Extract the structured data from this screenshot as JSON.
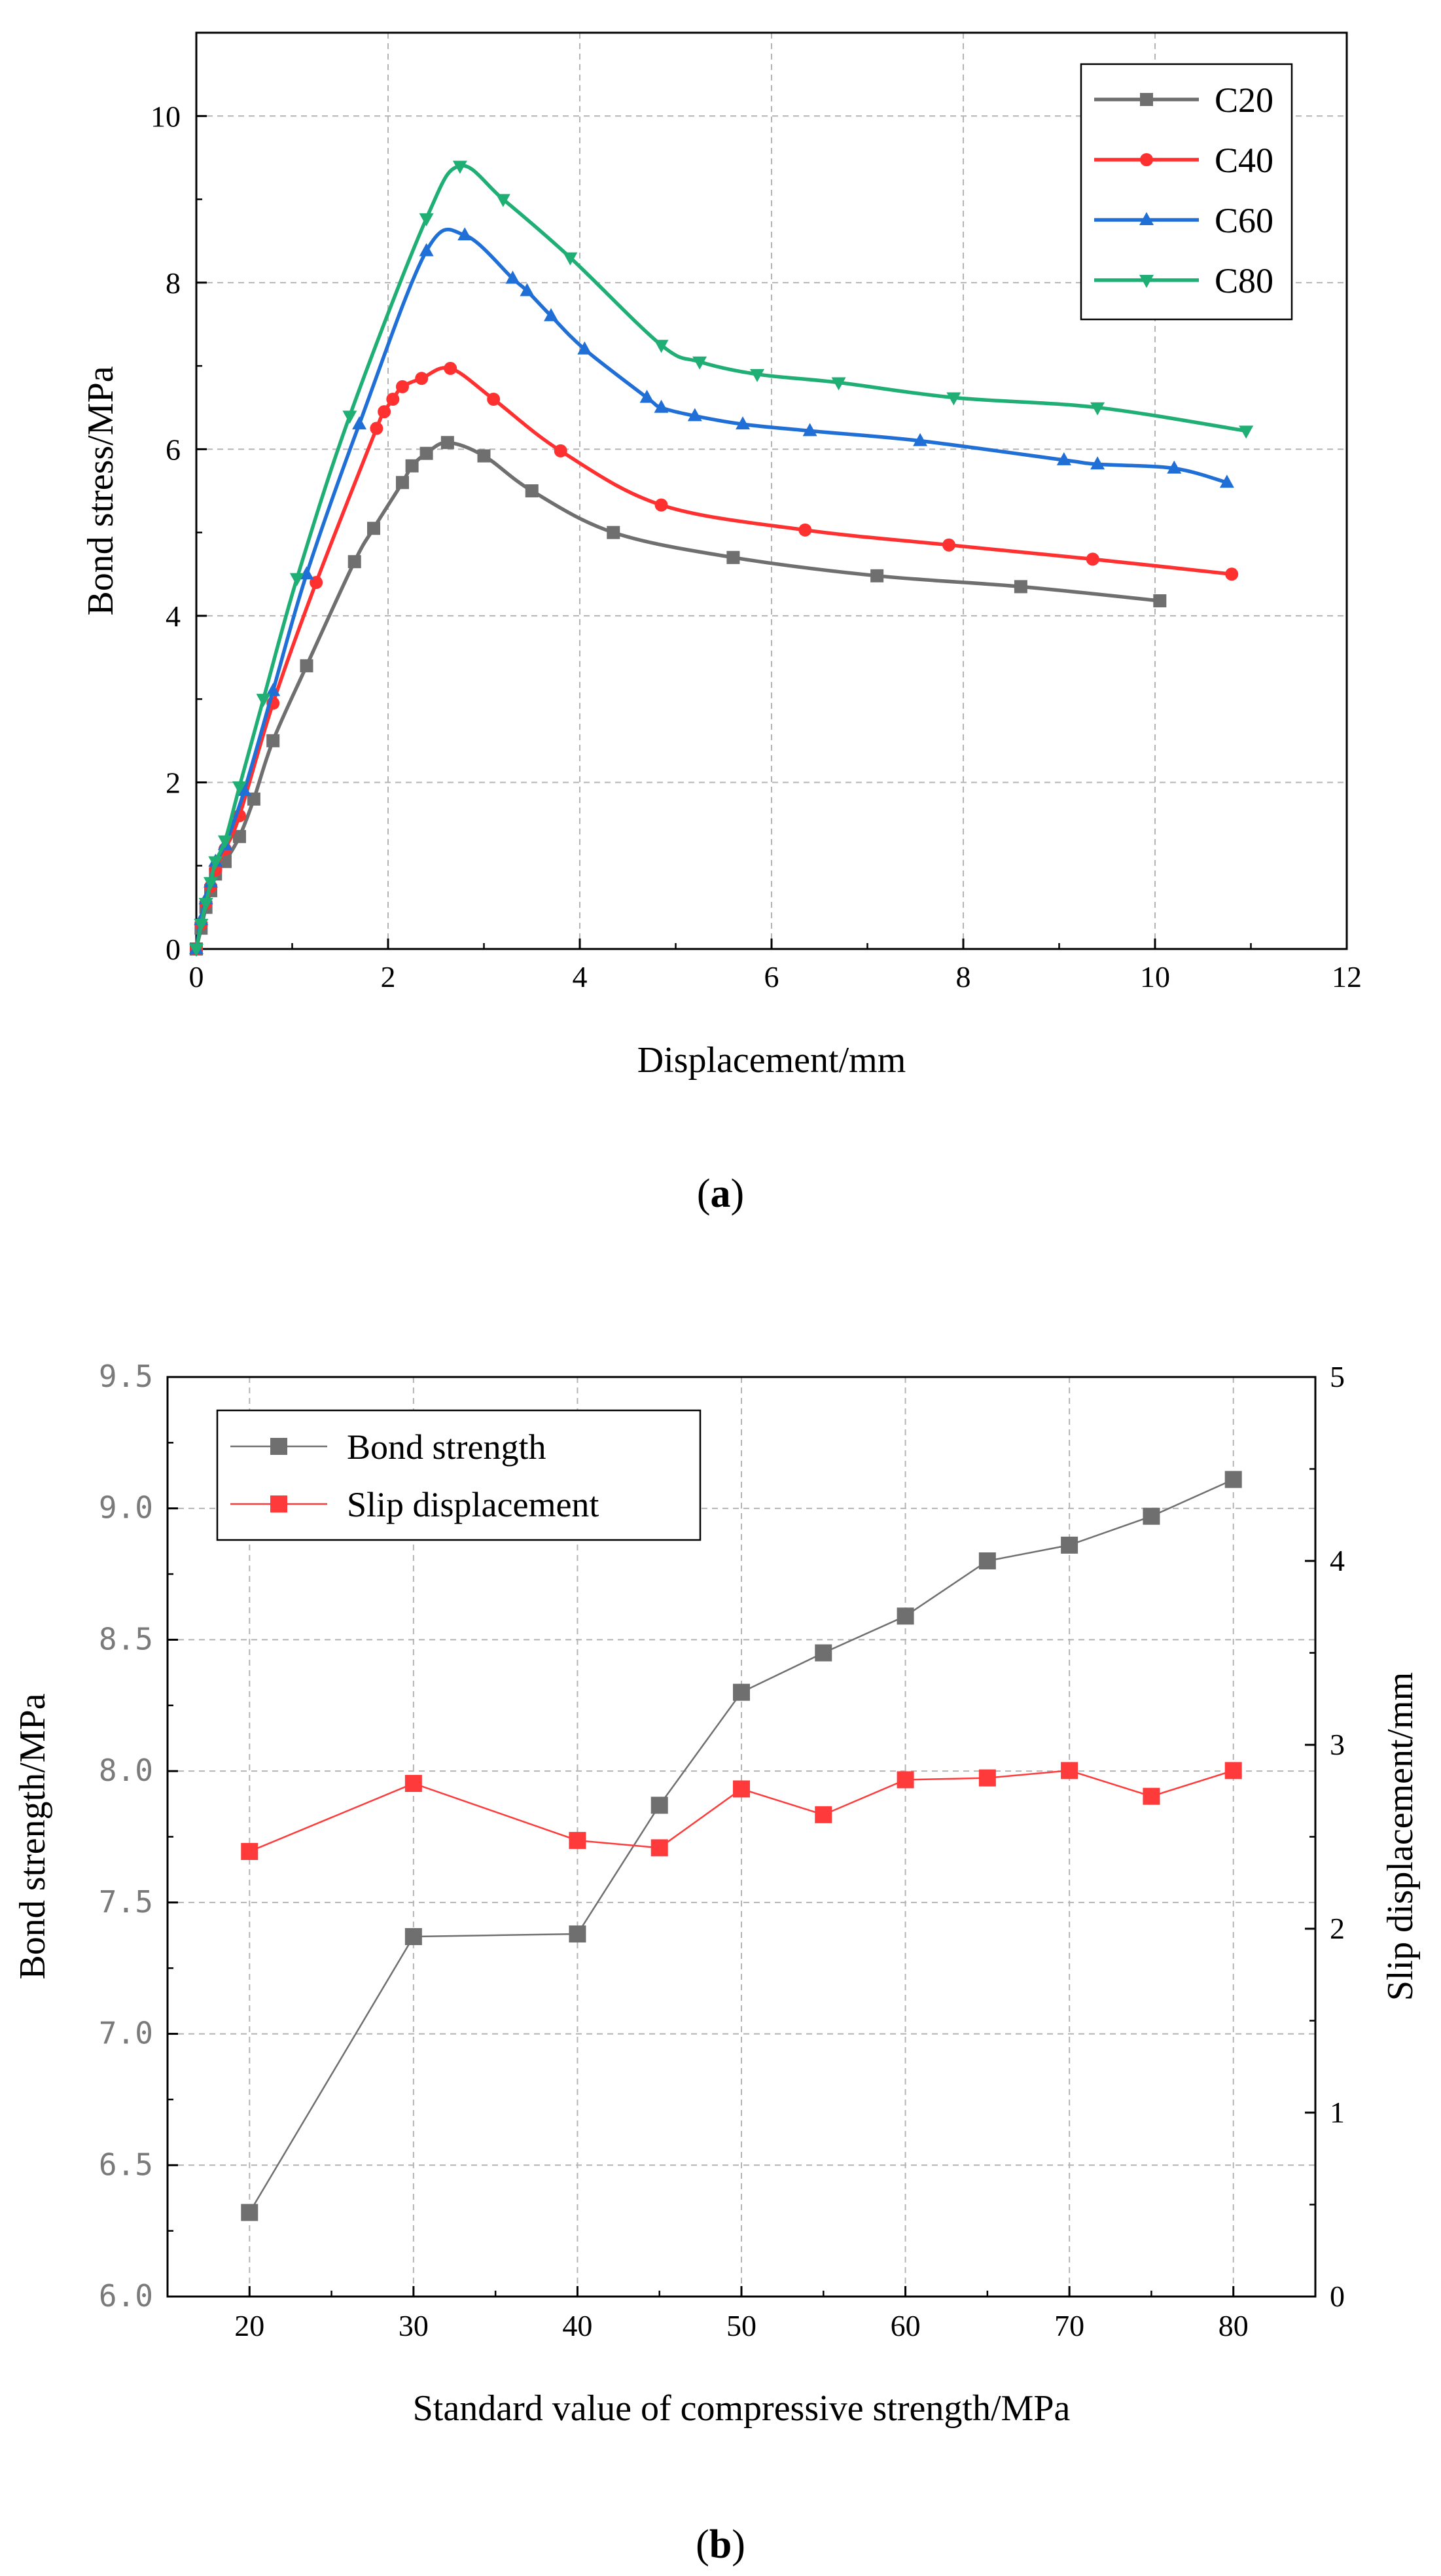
{
  "chart_data": [
    {
      "type": "line",
      "caption_label": "a",
      "xlabel": "Displacement/mm",
      "ylabel": "Bond stress/MPa",
      "xlim": [
        0,
        12
      ],
      "ylim": [
        0,
        11
      ],
      "x_ticks": [
        0,
        2,
        4,
        6,
        8,
        10,
        12
      ],
      "y_ticks": [
        0,
        2,
        4,
        6,
        8,
        10
      ],
      "grid": true,
      "legend_position": "top-right",
      "series": [
        {
          "name": "C20",
          "color": "#6f6f6f",
          "marker": "square",
          "x": [
            0,
            0.05,
            0.1,
            0.15,
            0.2,
            0.3,
            0.45,
            0.6,
            0.8,
            1.15,
            1.65,
            1.85,
            2.15,
            2.25,
            2.4,
            2.62,
            3.0,
            3.5,
            4.35,
            5.6,
            7.1,
            8.6,
            10.05
          ],
          "y": [
            0,
            0.25,
            0.5,
            0.7,
            0.9,
            1.05,
            1.35,
            1.8,
            2.5,
            3.4,
            4.65,
            5.05,
            5.6,
            5.8,
            5.95,
            6.08,
            5.92,
            5.5,
            5.0,
            4.7,
            4.48,
            4.35,
            4.18
          ]
        },
        {
          "name": "C40",
          "color": "#ff3030",
          "marker": "circle",
          "x": [
            0,
            0.05,
            0.1,
            0.15,
            0.2,
            0.3,
            0.45,
            0.8,
            1.25,
            1.88,
            1.96,
            2.05,
            2.15,
            2.35,
            2.65,
            3.1,
            3.8,
            4.85,
            6.35,
            7.85,
            9.35,
            10.8
          ],
          "y": [
            0,
            0.3,
            0.55,
            0.75,
            0.95,
            1.2,
            1.6,
            2.95,
            4.4,
            6.25,
            6.45,
            6.6,
            6.75,
            6.85,
            6.97,
            6.6,
            5.98,
            5.33,
            5.03,
            4.85,
            4.68,
            4.5
          ]
        },
        {
          "name": "C60",
          "color": "#1f6fd6",
          "marker": "triangle-up",
          "x": [
            0,
            0.05,
            0.1,
            0.15,
            0.2,
            0.3,
            0.5,
            0.8,
            1.15,
            1.7,
            2.4,
            2.8,
            3.3,
            3.45,
            3.7,
            4.05,
            4.7,
            4.85,
            5.2,
            5.7,
            6.4,
            7.55,
            9.05,
            9.4,
            10.2,
            10.75
          ],
          "y": [
            0,
            0.35,
            0.6,
            0.8,
            1.05,
            1.25,
            1.9,
            3.1,
            4.5,
            6.3,
            8.38,
            8.57,
            8.05,
            7.9,
            7.6,
            7.2,
            6.62,
            6.5,
            6.4,
            6.3,
            6.22,
            6.1,
            5.87,
            5.82,
            5.77,
            5.6
          ]
        },
        {
          "name": "C80",
          "color": "#1fae73",
          "marker": "triangle-down",
          "x": [
            0,
            0.05,
            0.1,
            0.15,
            0.2,
            0.3,
            0.45,
            0.7,
            1.05,
            1.6,
            2.4,
            2.75,
            3.2,
            3.9,
            4.85,
            5.25,
            5.85,
            6.7,
            7.9,
            9.4,
            10.95
          ],
          "y": [
            0,
            0.3,
            0.55,
            0.8,
            1.05,
            1.3,
            1.95,
            3.0,
            4.45,
            6.4,
            8.77,
            9.4,
            9.0,
            8.3,
            7.25,
            7.05,
            6.9,
            6.8,
            6.62,
            6.5,
            6.22
          ]
        }
      ]
    },
    {
      "type": "line",
      "caption_label": "b",
      "xlabel": "Standard value of compressive strength/MPa",
      "ylabel_left": "Bond strength/MPa",
      "ylabel_right": "Slip displacement/mm",
      "xlim": [
        15,
        85
      ],
      "ylim_left": [
        6.0,
        9.5
      ],
      "ylim_right": [
        0,
        5
      ],
      "x_ticks": [
        20,
        30,
        40,
        50,
        60,
        70,
        80
      ],
      "y_ticks_left": [
        "6.0",
        "6.5",
        "7.0",
        "7.5",
        "8.0",
        "8.5",
        "9.0",
        "9.5"
      ],
      "y_ticks_right": [
        0,
        1,
        2,
        3,
        4,
        5
      ],
      "grid": true,
      "legend_position": "top-left",
      "categories": [
        20,
        30,
        40,
        45,
        50,
        55,
        60,
        65,
        70,
        75,
        80
      ],
      "series": [
        {
          "name": "Bond strength",
          "color": "#6f6f6f",
          "marker": "square",
          "axis": "left",
          "values": [
            6.32,
            7.37,
            7.38,
            7.87,
            8.3,
            8.45,
            8.59,
            8.8,
            8.86,
            8.97,
            9.11
          ]
        },
        {
          "name": "Slip displacement",
          "color": "#ff3a3a",
          "marker": "square",
          "axis": "right",
          "values": [
            2.42,
            2.79,
            2.48,
            2.44,
            2.76,
            2.62,
            2.81,
            2.82,
            2.86,
            2.72,
            2.86
          ]
        }
      ]
    }
  ]
}
